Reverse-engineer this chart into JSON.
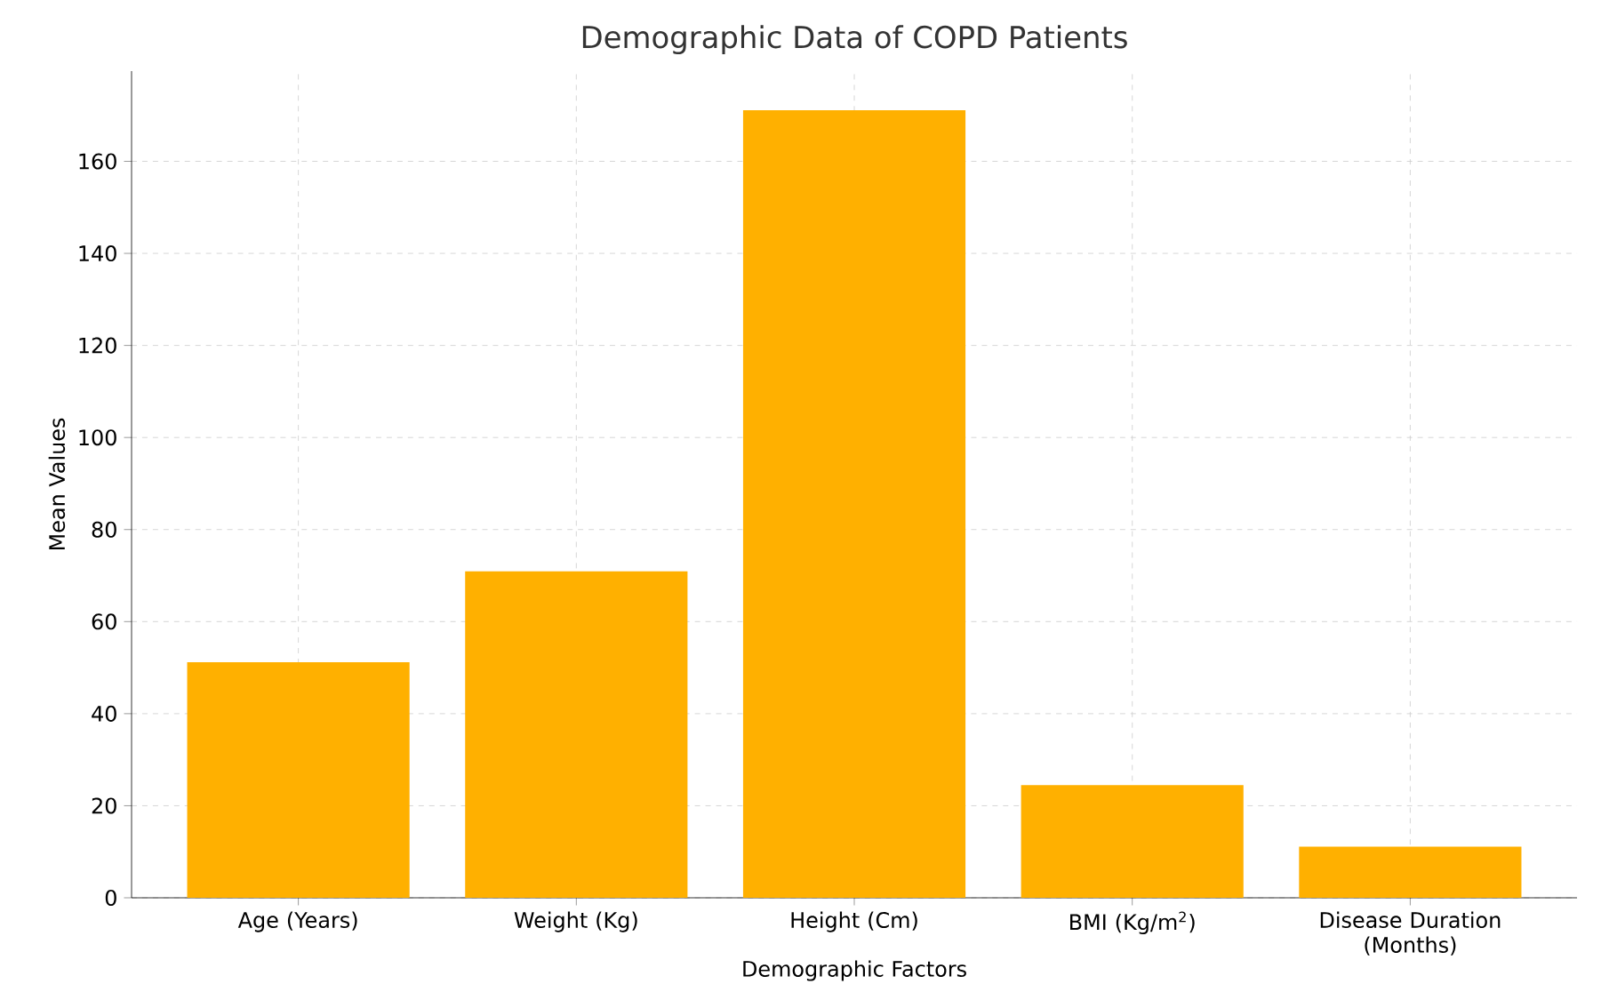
{
  "chart_data": {
    "type": "bar",
    "title": "Demographic Data of COPD Patients",
    "xlabel": "Demographic Factors",
    "ylabel": "Mean Values",
    "categories": [
      "Age (Years)",
      "Weight (Kg)",
      "Height (Cm)",
      "BMI (Kg/m$^{2}$)",
      "Disease Duration (Months)"
    ],
    "values": [
      51.2,
      70.9,
      171.1,
      24.5,
      11.1
    ],
    "color": "#ffb000",
    "ylim": [
      0,
      179.6
    ],
    "yticks": [
      0,
      20,
      40,
      60,
      80,
      100,
      120,
      140,
      160
    ],
    "grid": true
  }
}
